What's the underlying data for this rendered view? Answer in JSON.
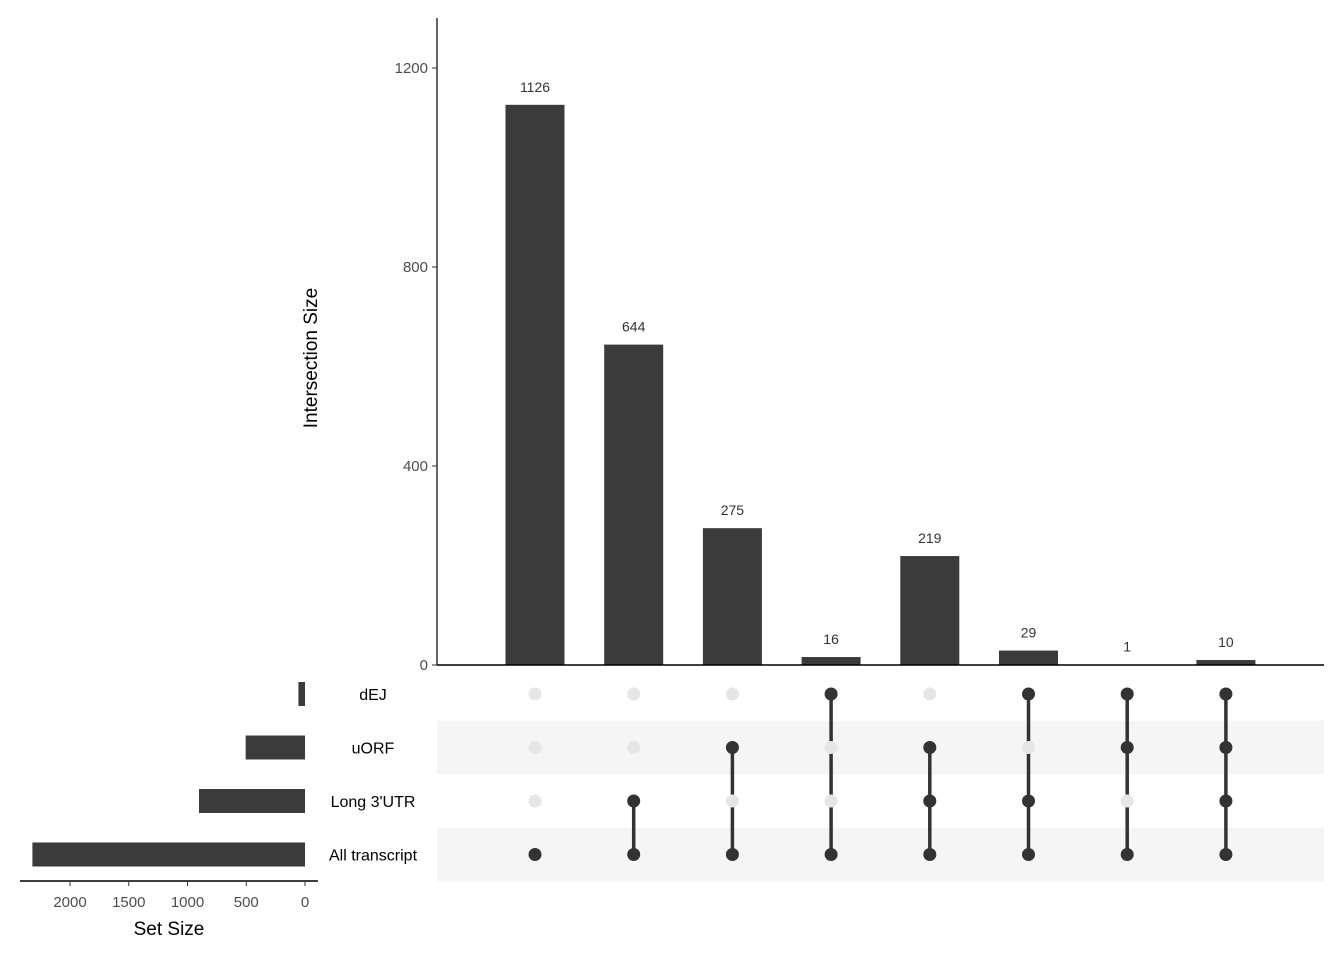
{
  "chart_data": {
    "type": "upset",
    "intersection_axis": {
      "label": "Intersection Size",
      "ticks": [
        0,
        400,
        800,
        1200
      ],
      "ylim": [
        0,
        1300
      ]
    },
    "set_axis": {
      "label": "Set Size",
      "ticks": [
        2000,
        1500,
        1000,
        500,
        0
      ],
      "xlim": [
        2400,
        0
      ]
    },
    "sets": [
      {
        "name": "dEJ",
        "size": 56
      },
      {
        "name": "uORF",
        "size": 505
      },
      {
        "name": "Long 3'UTR",
        "size": 902
      },
      {
        "name": "All transcript",
        "size": 2320
      }
    ],
    "intersections": [
      {
        "value": 1126,
        "members": [
          "All transcript"
        ]
      },
      {
        "value": 644,
        "members": [
          "All transcript",
          "Long 3'UTR"
        ]
      },
      {
        "value": 275,
        "members": [
          "All transcript",
          "uORF"
        ]
      },
      {
        "value": 16,
        "members": [
          "All transcript",
          "dEJ"
        ]
      },
      {
        "value": 219,
        "members": [
          "All transcript",
          "Long 3'UTR",
          "uORF"
        ]
      },
      {
        "value": 29,
        "members": [
          "All transcript",
          "Long 3'UTR",
          "dEJ"
        ]
      },
      {
        "value": 1,
        "members": [
          "All transcript",
          "uORF",
          "dEJ"
        ]
      },
      {
        "value": 10,
        "members": [
          "All transcript",
          "Long 3'UTR",
          "uORF",
          "dEJ"
        ]
      }
    ],
    "colors": {
      "bar": "#3b3b3b",
      "dot_active": "#333333",
      "dot_inactive": "#e6e6e6",
      "stripe": "#f5f5f5"
    }
  }
}
